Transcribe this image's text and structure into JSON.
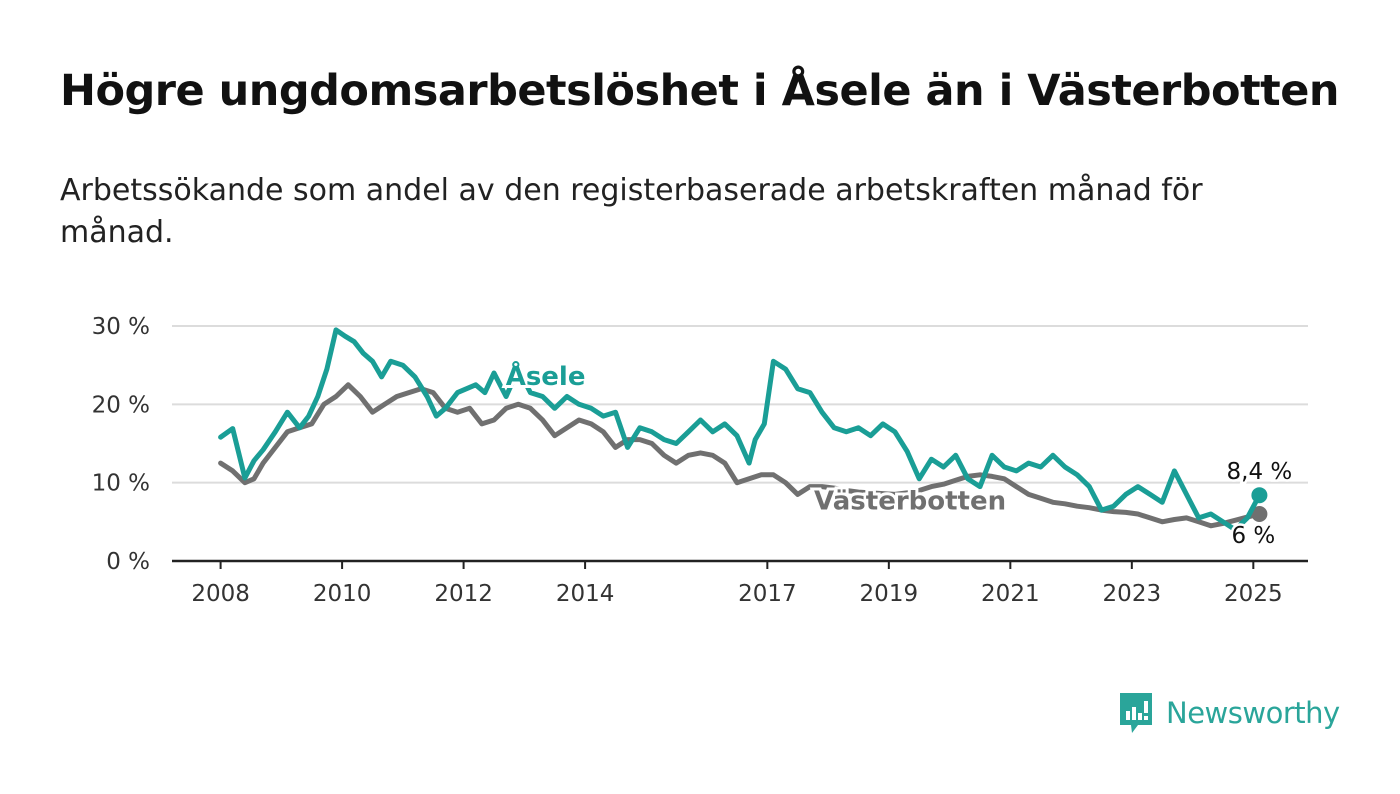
{
  "title": "Högre ungdomsarbetslöshet i Åsele än i Västerbotten",
  "subtitle": "Arbetssökande som andel av den registerbaserade arbetskraften månad för månad.",
  "brand": {
    "name": "Newsworthy",
    "icon": "newsworthy-logo-icon",
    "color": "#2aa59a"
  },
  "chart_data": {
    "type": "line",
    "title": "Högre ungdomsarbetslöshet i Åsele än i Västerbotten",
    "subtitle": "Arbetssökande som andel av den registerbaserade arbetskraften månad för månad.",
    "xlabel": "",
    "ylabel": "",
    "ylim": [
      0,
      30
    ],
    "yticks": [
      0,
      10,
      20,
      30
    ],
    "ytick_labels": [
      "0 %",
      "10 %",
      "20 %",
      "30 %"
    ],
    "xticks": [
      2008,
      2010,
      2012,
      2014,
      2017,
      2019,
      2021,
      2023,
      2025
    ],
    "xtick_labels": [
      "2008",
      "2010",
      "2012",
      "2014",
      "2017",
      "2019",
      "2021",
      "2023",
      "2025"
    ],
    "xlim": [
      2007.2,
      2025.9
    ],
    "grid": true,
    "legend": "inline labels",
    "series": [
      {
        "name": "Åsele",
        "color": "#1a9e96",
        "end_label": "8,4 %",
        "x": [
          2008.0,
          2008.2,
          2008.4,
          2008.55,
          2008.7,
          2008.9,
          2009.1,
          2009.3,
          2009.45,
          2009.6,
          2009.75,
          2009.9,
          2010.05,
          2010.2,
          2010.35,
          2010.5,
          2010.65,
          2010.8,
          2011.0,
          2011.2,
          2011.4,
          2011.55,
          2011.7,
          2011.9,
          2012.05,
          2012.2,
          2012.35,
          2012.5,
          2012.7,
          2012.9,
          2013.1,
          2013.3,
          2013.5,
          2013.7,
          2013.9,
          2014.1,
          2014.3,
          2014.5,
          2014.7,
          2014.9,
          2015.1,
          2015.3,
          2015.5,
          2015.7,
          2015.9,
          2016.1,
          2016.3,
          2016.5,
          2016.7,
          2016.8,
          2016.95,
          2017.1,
          2017.3,
          2017.5,
          2017.7,
          2017.9,
          2018.1,
          2018.3,
          2018.5,
          2018.7,
          2018.9,
          2019.1,
          2019.3,
          2019.5,
          2019.7,
          2019.9,
          2020.1,
          2020.3,
          2020.5,
          2020.7,
          2020.9,
          2021.1,
          2021.3,
          2021.5,
          2021.7,
          2021.9,
          2022.1,
          2022.3,
          2022.5,
          2022.7,
          2022.9,
          2023.1,
          2023.3,
          2023.5,
          2023.7,
          2023.9,
          2024.1,
          2024.3,
          2024.5,
          2024.7,
          2024.9,
          2025.1
        ],
        "values": [
          15.8,
          16.9,
          10.6,
          12.8,
          14.2,
          16.5,
          19.0,
          17.0,
          18.5,
          21.0,
          24.5,
          29.5,
          28.7,
          28.0,
          26.5,
          25.5,
          23.5,
          25.5,
          25.0,
          23.5,
          21.0,
          18.5,
          19.5,
          21.5,
          22.0,
          22.5,
          21.5,
          24.0,
          21.0,
          24.5,
          21.5,
          21.0,
          19.5,
          21.0,
          20.0,
          19.5,
          18.5,
          19.0,
          14.5,
          17.0,
          16.5,
          15.5,
          15.0,
          16.5,
          18.0,
          16.5,
          17.5,
          16.0,
          12.5,
          15.5,
          17.5,
          25.5,
          24.5,
          22.0,
          21.5,
          19.0,
          17.0,
          16.5,
          17.0,
          16.0,
          17.5,
          16.5,
          14.0,
          10.5,
          13.0,
          12.0,
          13.5,
          10.5,
          9.5,
          13.5,
          12.0,
          11.5,
          12.5,
          12.0,
          13.5,
          12.0,
          11.0,
          9.5,
          6.5,
          7.0,
          8.5,
          9.5,
          8.5,
          7.5,
          11.5,
          8.5,
          5.5,
          6.0,
          5.0,
          4.0,
          5.5,
          8.4
        ]
      },
      {
        "name": "Västerbotten",
        "color": "#707070",
        "end_label": "6 %",
        "x": [
          2008.0,
          2008.2,
          2008.4,
          2008.55,
          2008.7,
          2008.9,
          2009.1,
          2009.3,
          2009.5,
          2009.7,
          2009.9,
          2010.1,
          2010.3,
          2010.5,
          2010.7,
          2010.9,
          2011.1,
          2011.3,
          2011.5,
          2011.7,
          2011.9,
          2012.1,
          2012.3,
          2012.5,
          2012.7,
          2012.9,
          2013.1,
          2013.3,
          2013.5,
          2013.7,
          2013.9,
          2014.1,
          2014.3,
          2014.5,
          2014.7,
          2014.9,
          2015.1,
          2015.3,
          2015.5,
          2015.7,
          2015.9,
          2016.1,
          2016.3,
          2016.5,
          2016.7,
          2016.9,
          2017.1,
          2017.3,
          2017.5,
          2017.7,
          2017.9,
          2018.1,
          2018.3,
          2018.5,
          2018.7,
          2018.9,
          2019.1,
          2019.3,
          2019.5,
          2019.7,
          2019.9,
          2020.1,
          2020.3,
          2020.5,
          2020.7,
          2020.9,
          2021.1,
          2021.3,
          2021.5,
          2021.7,
          2021.9,
          2022.1,
          2022.3,
          2022.5,
          2022.7,
          2022.9,
          2023.1,
          2023.3,
          2023.5,
          2023.7,
          2023.9,
          2024.1,
          2024.3,
          2024.5,
          2024.7,
          2024.9,
          2025.1
        ],
        "values": [
          12.5,
          11.5,
          10.0,
          10.5,
          12.5,
          14.5,
          16.5,
          17.0,
          17.5,
          20.0,
          21.0,
          22.5,
          21.0,
          19.0,
          20.0,
          21.0,
          21.5,
          22.0,
          21.5,
          19.5,
          19.0,
          19.5,
          17.5,
          18.0,
          19.5,
          20.0,
          19.5,
          18.0,
          16.0,
          17.0,
          18.0,
          17.5,
          16.5,
          14.5,
          15.5,
          15.5,
          15.0,
          13.5,
          12.5,
          13.5,
          13.8,
          13.5,
          12.5,
          10.0,
          10.5,
          11.0,
          11.0,
          10.0,
          8.5,
          9.5,
          9.5,
          9.3,
          9.0,
          8.8,
          8.7,
          8.6,
          8.5,
          8.7,
          9.0,
          9.5,
          9.8,
          10.3,
          10.8,
          11.0,
          10.8,
          10.5,
          9.5,
          8.5,
          8.0,
          7.5,
          7.3,
          7.0,
          6.8,
          6.5,
          6.3,
          6.2,
          6.0,
          5.5,
          5.0,
          5.3,
          5.5,
          5.0,
          4.5,
          4.8,
          5.2,
          5.6,
          6.0
        ]
      }
    ]
  }
}
